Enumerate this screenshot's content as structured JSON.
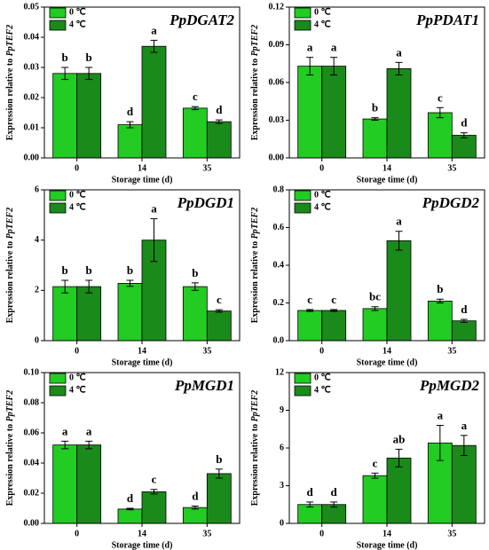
{
  "chart_data": [
    {
      "type": "bar",
      "title": "PpDGAT2",
      "xlabel": "Storage time (d)",
      "ylabel": "Expression relative to ",
      "ylabel_gene": "PpTEF2",
      "categories": [
        "0",
        "14",
        "35"
      ],
      "series": [
        {
          "name": "0 ℃",
          "color": "#22cc22",
          "values": [
            0.028,
            0.011,
            0.0165
          ],
          "errors": [
            0.002,
            0.001,
            0.0005
          ],
          "letters": [
            "b",
            "d",
            "c"
          ]
        },
        {
          "name": "4 ℃",
          "color": "#1a8a1a",
          "values": [
            0.028,
            0.037,
            0.012
          ],
          "errors": [
            0.002,
            0.002,
            0.0006
          ],
          "letters": [
            "b",
            "a",
            "d"
          ]
        }
      ],
      "ylim": [
        0,
        0.05
      ],
      "yticks": [
        {
          "value": 0,
          "label": "0.00"
        },
        {
          "value": 0.01,
          "label": "0.01"
        },
        {
          "value": 0.02,
          "label": "0.02"
        },
        {
          "value": 0.03,
          "label": "0.03"
        },
        {
          "value": 0.04,
          "label": "0.04"
        },
        {
          "value": 0.05,
          "label": "0.05"
        }
      ]
    },
    {
      "type": "bar",
      "title": "PpPDAT1",
      "xlabel": "Storage time (d)",
      "ylabel": "Expression relative to ",
      "ylabel_gene": "PpTEF2",
      "categories": [
        "0",
        "14",
        "35"
      ],
      "series": [
        {
          "name": "0 ℃",
          "color": "#22cc22",
          "values": [
            0.073,
            0.031,
            0.036
          ],
          "errors": [
            0.007,
            0.001,
            0.004
          ],
          "letters": [
            "a",
            "b",
            "c"
          ]
        },
        {
          "name": "4 ℃",
          "color": "#1a8a1a",
          "values": [
            0.073,
            0.071,
            0.018
          ],
          "errors": [
            0.007,
            0.005,
            0.002
          ],
          "letters": [
            "a",
            "a",
            "d"
          ]
        }
      ],
      "ylim": [
        0,
        0.12
      ],
      "yticks": [
        {
          "value": 0,
          "label": "0.00"
        },
        {
          "value": 0.03,
          "label": "0.03"
        },
        {
          "value": 0.06,
          "label": "0.06"
        },
        {
          "value": 0.09,
          "label": "0.09"
        },
        {
          "value": 0.12,
          "label": "0.12"
        }
      ]
    },
    {
      "type": "bar",
      "title": "PpDGD1",
      "xlabel": "Storage time (d)",
      "ylabel": "Expression relative to ",
      "ylabel_gene": "PpTEF2",
      "categories": [
        "0",
        "14",
        "35"
      ],
      "series": [
        {
          "name": "0 ℃",
          "color": "#22cc22",
          "values": [
            2.15,
            2.28,
            2.15
          ],
          "errors": [
            0.25,
            0.12,
            0.15
          ],
          "letters": [
            "b",
            "b",
            "b"
          ]
        },
        {
          "name": "4 ℃",
          "color": "#1a8a1a",
          "values": [
            2.15,
            4.0,
            1.18
          ],
          "errors": [
            0.25,
            0.85,
            0.05
          ],
          "letters": [
            "b",
            "a",
            "c"
          ]
        }
      ],
      "ylim": [
        0,
        6
      ],
      "yticks": [
        0,
        2,
        4,
        6
      ]
    },
    {
      "type": "bar",
      "title": "PpDGD2",
      "xlabel": "Storage time (d)",
      "ylabel": "Expression relative to ",
      "ylabel_gene": "PpTEF2",
      "categories": [
        "0",
        "14",
        "35"
      ],
      "series": [
        {
          "name": "0 ℃",
          "color": "#22cc22",
          "values": [
            0.16,
            0.17,
            0.21
          ],
          "errors": [
            0.005,
            0.01,
            0.01
          ],
          "letters": [
            "c",
            "bc",
            "b"
          ]
        },
        {
          "name": "4 ℃",
          "color": "#1a8a1a",
          "values": [
            0.16,
            0.53,
            0.105
          ],
          "errors": [
            0.005,
            0.05,
            0.008
          ],
          "letters": [
            "c",
            "a",
            "d"
          ]
        }
      ],
      "ylim": [
        0,
        0.8
      ],
      "yticks": [
        {
          "value": 0,
          "label": "0.0"
        },
        {
          "value": 0.2,
          "label": "0.2"
        },
        {
          "value": 0.4,
          "label": "0.4"
        },
        {
          "value": 0.6,
          "label": "0.6"
        },
        {
          "value": 0.8,
          "label": "0.8"
        }
      ]
    },
    {
      "type": "bar",
      "title": "PpMGD1",
      "xlabel": "Storage time (d)",
      "ylabel": "Expression relative to ",
      "ylabel_gene": "PpTEF2",
      "categories": [
        "0",
        "14",
        "35"
      ],
      "series": [
        {
          "name": "0 ℃",
          "color": "#22cc22",
          "values": [
            0.052,
            0.0095,
            0.0105
          ],
          "errors": [
            0.0025,
            0.0005,
            0.001
          ],
          "letters": [
            "a",
            "d",
            "d"
          ]
        },
        {
          "name": "4 ℃",
          "color": "#1a8a1a",
          "values": [
            0.052,
            0.021,
            0.033
          ],
          "errors": [
            0.0025,
            0.0015,
            0.003
          ],
          "letters": [
            "a",
            "c",
            "b"
          ]
        }
      ],
      "ylim": [
        0,
        0.1
      ],
      "yticks": [
        {
          "value": 0,
          "label": "0.00"
        },
        {
          "value": 0.02,
          "label": "0.02"
        },
        {
          "value": 0.04,
          "label": "0.04"
        },
        {
          "value": 0.06,
          "label": "0.06"
        },
        {
          "value": 0.08,
          "label": "0.08"
        },
        {
          "value": 0.1,
          "label": "0.10"
        }
      ]
    },
    {
      "type": "bar",
      "title": "PpMGD2",
      "xlabel": "Storage time (d)",
      "ylabel": "Expression relative to ",
      "ylabel_gene": "PpTEF2",
      "categories": [
        "0",
        "14",
        "35"
      ],
      "series": [
        {
          "name": "0 ℃",
          "color": "#22cc22",
          "values": [
            1.5,
            3.8,
            6.4
          ],
          "errors": [
            0.2,
            0.2,
            1.4
          ],
          "letters": [
            "d",
            "c",
            "a"
          ]
        },
        {
          "name": "4 ℃",
          "color": "#1a8a1a",
          "values": [
            1.5,
            5.2,
            6.2
          ],
          "errors": [
            0.2,
            0.7,
            0.8
          ],
          "letters": [
            "d",
            "ab",
            "a"
          ]
        }
      ],
      "ylim": [
        0,
        12
      ],
      "yticks": [
        0,
        3,
        6,
        9,
        12
      ]
    }
  ]
}
